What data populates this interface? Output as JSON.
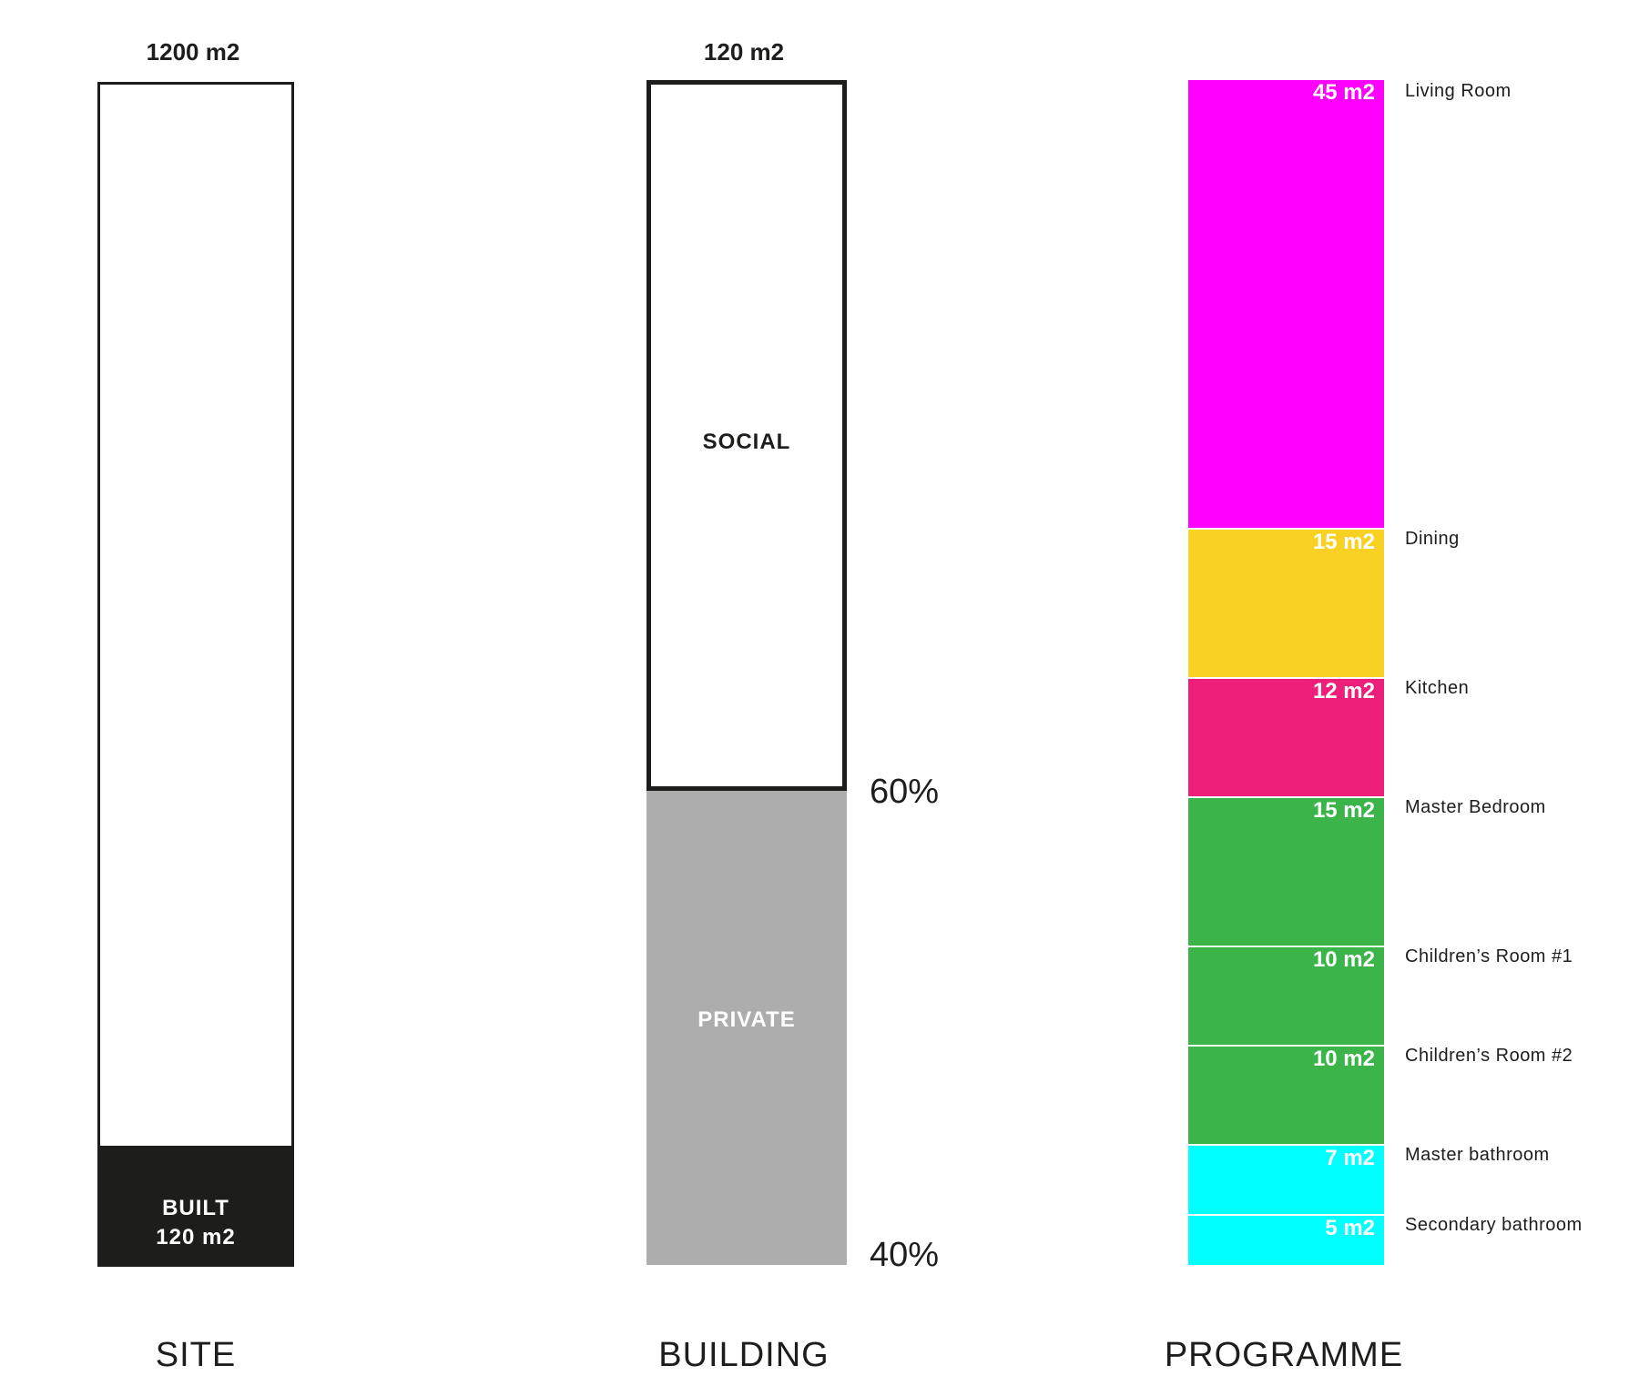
{
  "site": {
    "total": "1200 m2",
    "caption": "SITE",
    "built_label": "BUILT",
    "built_area": "120 m2",
    "total_area_m2": 1200,
    "built_area_m2": 120,
    "built_color": "#1d1d1b"
  },
  "building": {
    "total": "120 m2",
    "caption": "BUILDING",
    "social_label": "SOCIAL",
    "private_label": "PRIVATE",
    "social_pct_label": "60%",
    "private_pct_label": "40%",
    "social_share": 0.6,
    "private_share": 0.4,
    "private_color": "#adadad"
  },
  "programme": {
    "caption": "PROGRAMME",
    "rooms": [
      {
        "name": "Living Room",
        "value_label": "45 m2",
        "area": 45,
        "color": "#ff00ff"
      },
      {
        "name": "Dining",
        "value_label": "15 m2",
        "area": 15,
        "color": "#f9d122"
      },
      {
        "name": "Kitchen",
        "value_label": "12 m2",
        "area": 12,
        "color": "#ee1e7b"
      },
      {
        "name": "Master Bedroom",
        "value_label": "15 m2",
        "area": 15,
        "color": "#3bb54a"
      },
      {
        "name": "Children’s Room #1",
        "value_label": "10 m2",
        "area": 10,
        "color": "#3bb54a"
      },
      {
        "name": "Children’s Room #2",
        "value_label": "10 m2",
        "area": 10,
        "color": "#3bb54a"
      },
      {
        "name": "Master bathroom",
        "value_label": "7 m2",
        "area": 7,
        "color": "#00ffff"
      },
      {
        "name": "Secondary bathroom",
        "value_label": "5 m2",
        "area": 5,
        "color": "#00ffff"
      }
    ]
  }
}
